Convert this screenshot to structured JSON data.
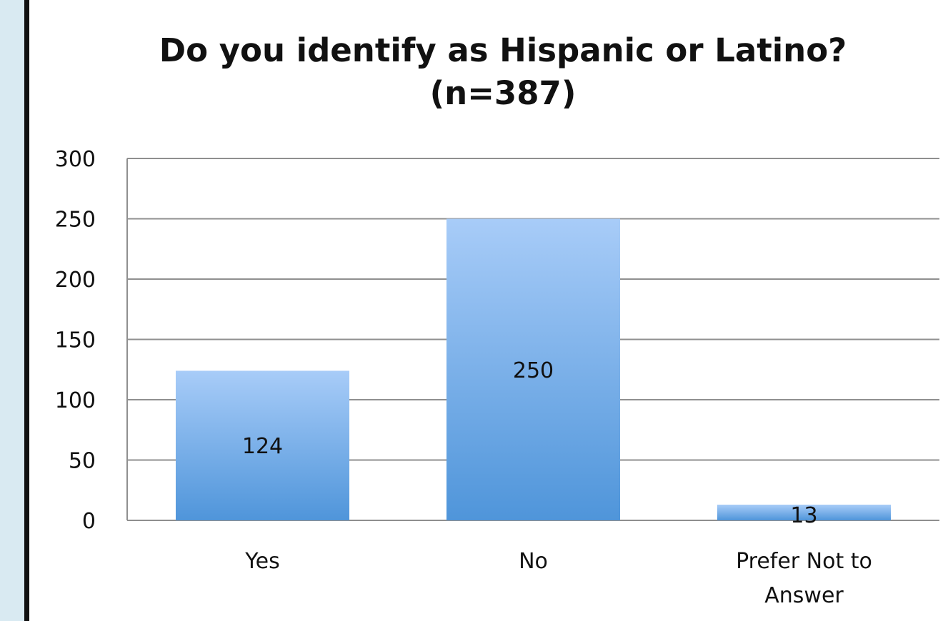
{
  "colors": {
    "left_panel": "#d9eaf2",
    "divider": "#111111",
    "grid": "#8f8f8f",
    "bar_top": "#a8ccf8",
    "bar_bottom": "#4f95da",
    "text": "#111111"
  },
  "chart_data": {
    "type": "bar",
    "title": "Do you identify as Hispanic or Latino?",
    "subtitle": "(n=387)",
    "categories": [
      "Yes",
      "No",
      "Prefer Not to Answer"
    ],
    "category_lines": [
      [
        "Yes"
      ],
      [
        "No"
      ],
      [
        "Prefer Not to",
        "Answer"
      ]
    ],
    "values": [
      124,
      250,
      13
    ],
    "data_labels": [
      "124",
      "250",
      "13"
    ],
    "ylim": [
      0,
      300
    ],
    "yticks": [
      0,
      50,
      100,
      150,
      200,
      250,
      300
    ],
    "ytick_labels": [
      "0",
      "50",
      "100",
      "150",
      "200",
      "250",
      "300"
    ],
    "grid": true,
    "legend": "none"
  }
}
